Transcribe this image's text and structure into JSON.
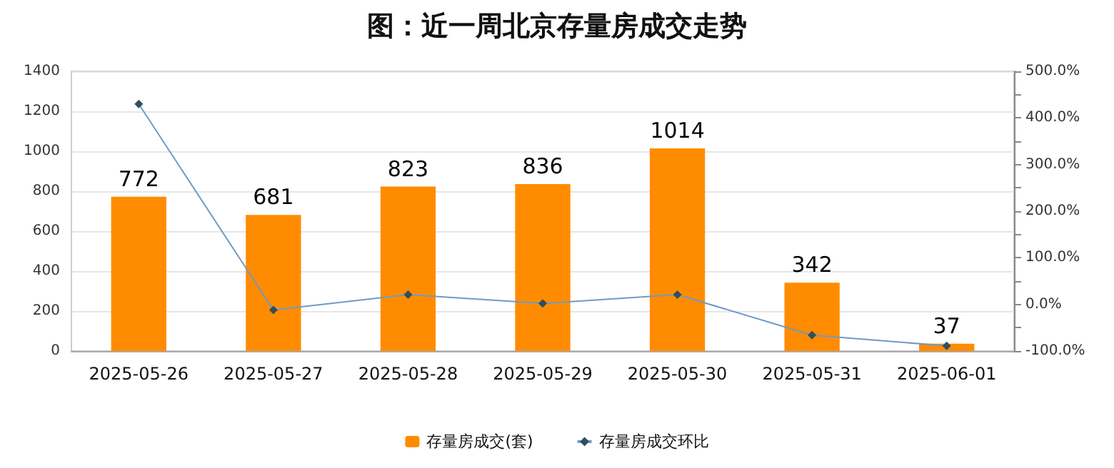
{
  "chart_data": {
    "type": "bar",
    "title": "图：近一周北京存量房成交走势",
    "categories": [
      "2025-05-26",
      "2025-05-27",
      "2025-05-28",
      "2025-05-29",
      "2025-05-30",
      "2025-05-31",
      "2025-06-01"
    ],
    "series": [
      {
        "name": "存量房成交(套)",
        "color": "#ff8c00",
        "values": [
          772,
          681,
          823,
          836,
          1014,
          342,
          37
        ],
        "value_labels": [
          "772",
          "681",
          "823",
          "836",
          "1014",
          "342",
          "37"
        ]
      },
      {
        "name": "存量房成交环比",
        "type": "line",
        "axis": "y2",
        "color": "#6f9ac6",
        "marker": "diamond",
        "values": [
          430,
          -12,
          21,
          2,
          21,
          -66,
          -89
        ]
      }
    ],
    "ylim": [
      0,
      1400
    ],
    "yticks": [
      0,
      200,
      400,
      600,
      800,
      1000,
      1200,
      1400
    ],
    "y2lim": [
      -100,
      500
    ],
    "y2ticks": [
      {
        "value": -100,
        "label": "-100.0%"
      },
      {
        "value": -50,
        "label": null
      },
      {
        "value": 0,
        "label": "0.0%"
      },
      {
        "value": 50,
        "label": null
      },
      {
        "value": 100,
        "label": "100.0%"
      },
      {
        "value": 150,
        "label": null
      },
      {
        "value": 200,
        "label": "200.0%"
      },
      {
        "value": 250,
        "label": null
      },
      {
        "value": 300,
        "label": "300.0%"
      },
      {
        "value": 350,
        "label": null
      },
      {
        "value": 400,
        "label": "400.0%"
      },
      {
        "value": 450,
        "label": null
      },
      {
        "value": 500,
        "label": "500.0%"
      }
    ],
    "grid": "y",
    "legend": "bottom"
  }
}
